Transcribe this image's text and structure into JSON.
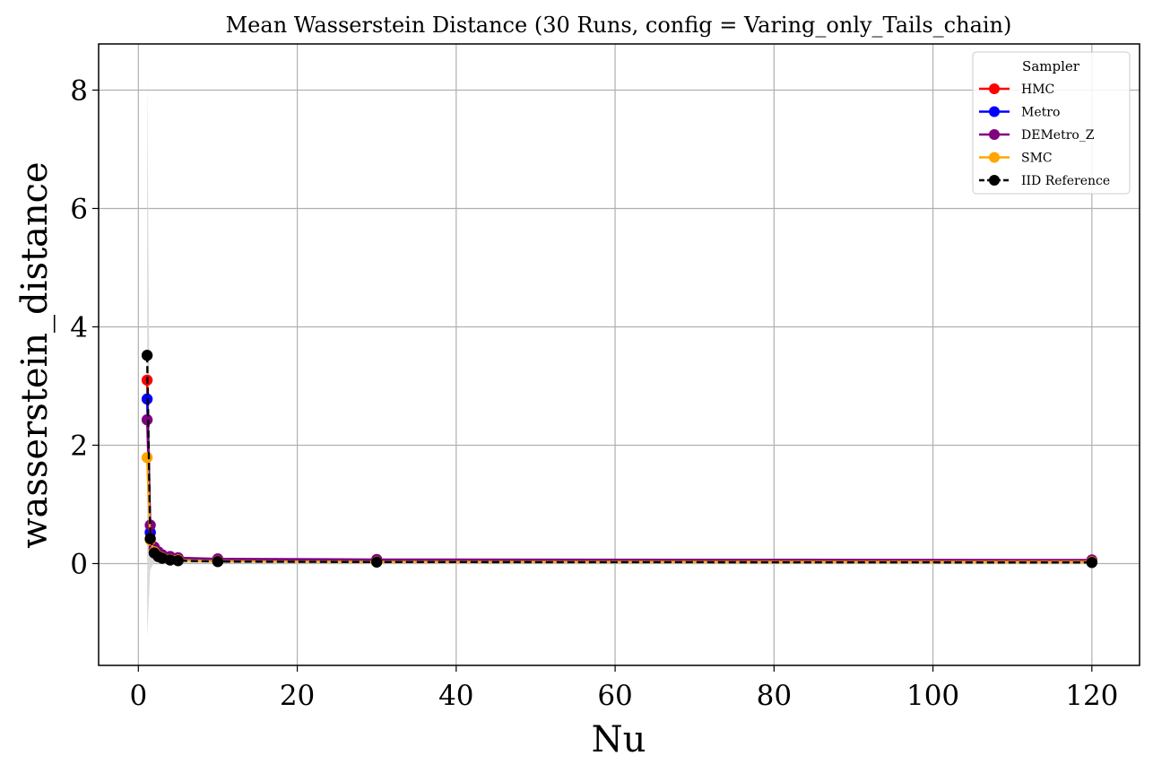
{
  "chart_data": {
    "type": "line",
    "title": "Mean Wasserstein Distance (30 Runs, config = Varing_only_Tails_chain)",
    "xlabel": "Nu",
    "ylabel": "wasserstein_distance",
    "xlim": [
      -5,
      126
    ],
    "ylim": [
      -1.72,
      8.78
    ],
    "xticks": [
      0,
      20,
      40,
      60,
      80,
      100,
      120
    ],
    "yticks": [
      0,
      2,
      4,
      6,
      8
    ],
    "grid": true,
    "legend": {
      "title": "Sampler",
      "placement": "top-right"
    },
    "x": [
      1.1,
      1.5,
      2,
      2.5,
      3,
      4,
      5,
      10,
      30,
      120
    ],
    "series": [
      {
        "name": "HMC",
        "color": "#ff0000",
        "line_style": "solid",
        "values": [
          3.1,
          0.52,
          0.24,
          0.16,
          0.12,
          0.09,
          0.07,
          0.05,
          0.045,
          0.04
        ]
      },
      {
        "name": "Metro",
        "color": "#0000ff",
        "line_style": "solid",
        "values": [
          2.78,
          0.53,
          0.25,
          0.17,
          0.13,
          0.1,
          0.08,
          0.06,
          0.05,
          0.045
        ]
      },
      {
        "name": "DEMetro_Z",
        "color": "#800080",
        "line_style": "solid",
        "values": [
          2.43,
          0.65,
          0.28,
          0.2,
          0.15,
          0.12,
          0.1,
          0.08,
          0.07,
          0.06
        ]
      },
      {
        "name": "SMC",
        "color": "#ffa500",
        "line_style": "solid",
        "values": [
          1.79,
          0.4,
          0.2,
          0.13,
          0.1,
          0.07,
          0.06,
          0.04,
          0.03,
          0.03
        ]
      },
      {
        "name": "IID Reference",
        "color": "#000000",
        "line_style": "dashed",
        "values": [
          3.52,
          0.42,
          0.18,
          0.12,
          0.09,
          0.06,
          0.05,
          0.035,
          0.025,
          0.02
        ]
      }
    ],
    "uncertainty_band": {
      "color": "#d3d3d3",
      "x": [
        1.1,
        1.5,
        2,
        3,
        5,
        10,
        30,
        120
      ],
      "upper": [
        8.3,
        0.95,
        0.4,
        0.22,
        0.12,
        0.08,
        0.06,
        0.05
      ],
      "lower": [
        -1.25,
        -0.1,
        0.02,
        0.02,
        0.01,
        0.0,
        0.0,
        0.0
      ]
    }
  }
}
